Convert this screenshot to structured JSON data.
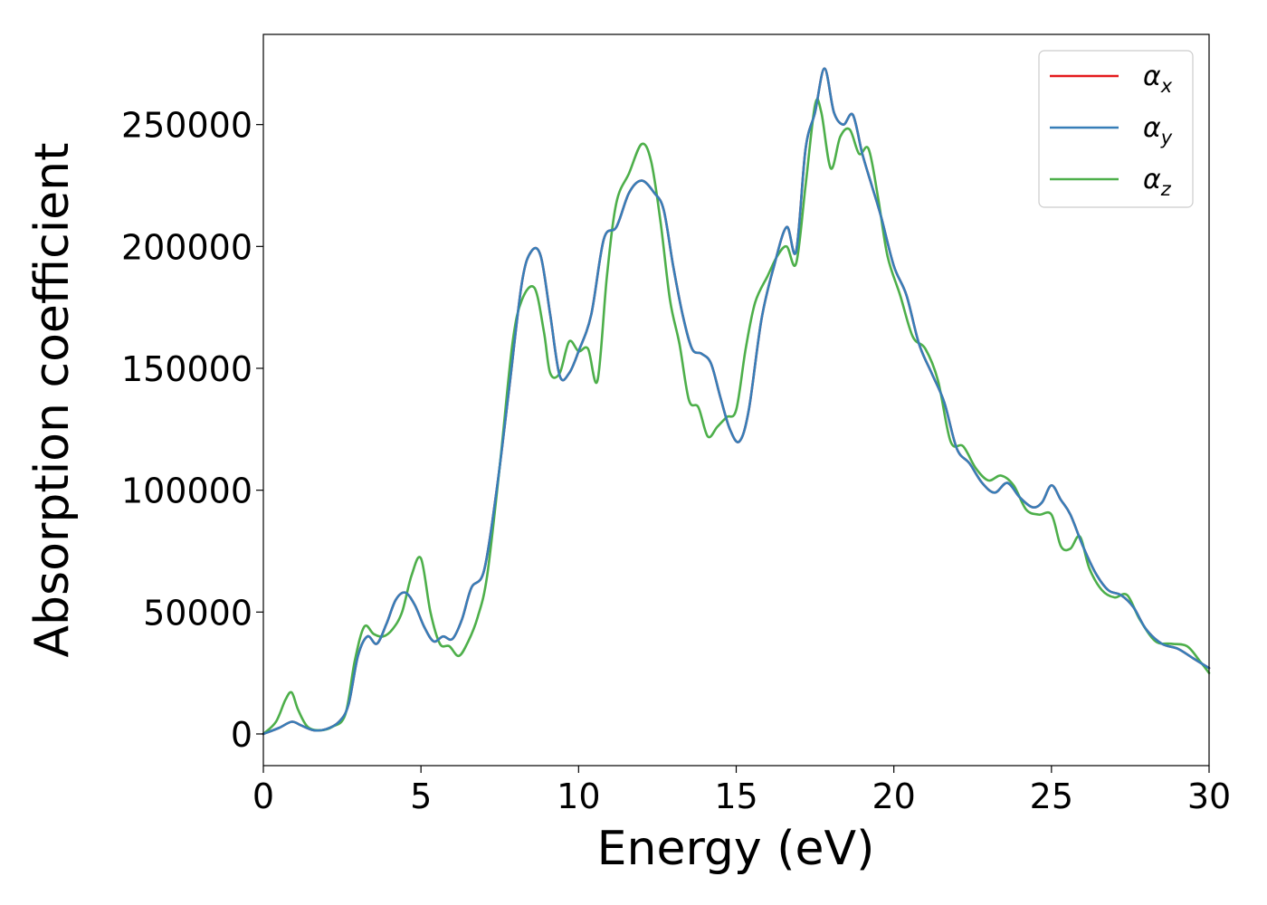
{
  "chart_data": {
    "type": "line",
    "title": "",
    "xlabel": "Energy (eV)",
    "ylabel": "Absorption coefficient",
    "xlim": [
      0,
      30
    ],
    "ylim": [
      -13000,
      287000
    ],
    "xticks": [
      0,
      5,
      10,
      15,
      20,
      25,
      30
    ],
    "yticks": [
      0,
      50000,
      100000,
      150000,
      200000,
      250000
    ],
    "grid": false,
    "legend_position": "top-right",
    "series": [
      {
        "name": "α",
        "subscript": "x",
        "color": "#e41a1c",
        "x": [
          0,
          0.5,
          0.9,
          1.2,
          1.6,
          2.0,
          2.4,
          2.7,
          3.0,
          3.3,
          3.6,
          3.9,
          4.2,
          4.5,
          4.8,
          5.1,
          5.4,
          5.7,
          6.0,
          6.3,
          6.6,
          7.0,
          7.4,
          7.8,
          8.2,
          8.5,
          8.8,
          9.1,
          9.4,
          9.7,
          10.0,
          10.4,
          10.8,
          11.2,
          11.6,
          12.0,
          12.4,
          12.7,
          13.0,
          13.3,
          13.6,
          13.9,
          14.2,
          14.5,
          14.8,
          15.1,
          15.4,
          15.8,
          16.2,
          16.6,
          16.9,
          17.2,
          17.5,
          17.8,
          18.1,
          18.4,
          18.7,
          19.0,
          19.3,
          19.6,
          20.0,
          20.4,
          20.8,
          21.2,
          21.6,
          22.0,
          22.4,
          22.8,
          23.2,
          23.6,
          24.0,
          24.4,
          24.7,
          25.0,
          25.3,
          25.6,
          26.0,
          26.4,
          26.8,
          27.2,
          27.6,
          28.0,
          28.5,
          29.0,
          29.5,
          30.0
        ],
        "values": [
          0,
          2500,
          5000,
          3500,
          1500,
          2000,
          5000,
          12000,
          32000,
          40000,
          37000,
          45000,
          55000,
          58000,
          53000,
          44000,
          38000,
          40000,
          39000,
          47000,
          60000,
          67000,
          100000,
          142000,
          185000,
          198000,
          196000,
          172000,
          147000,
          148000,
          157000,
          172000,
          203000,
          208000,
          222000,
          227000,
          222000,
          215000,
          192000,
          172000,
          158000,
          156000,
          152000,
          138000,
          125000,
          120000,
          133000,
          170000,
          192000,
          208000,
          198000,
          240000,
          255000,
          273000,
          255000,
          250000,
          254000,
          238000,
          225000,
          212000,
          192000,
          180000,
          160000,
          148000,
          136000,
          117000,
          111000,
          103000,
          99000,
          103000,
          97000,
          93000,
          95000,
          102000,
          96000,
          90000,
          77000,
          66000,
          59000,
          57000,
          52000,
          43000,
          37000,
          35000,
          31000,
          27000
        ]
      },
      {
        "name": "α",
        "subscript": "y",
        "color": "#377eb8",
        "x": [
          0,
          0.5,
          0.9,
          1.2,
          1.6,
          2.0,
          2.4,
          2.7,
          3.0,
          3.3,
          3.6,
          3.9,
          4.2,
          4.5,
          4.8,
          5.1,
          5.4,
          5.7,
          6.0,
          6.3,
          6.6,
          7.0,
          7.4,
          7.8,
          8.2,
          8.5,
          8.8,
          9.1,
          9.4,
          9.7,
          10.0,
          10.4,
          10.8,
          11.2,
          11.6,
          12.0,
          12.4,
          12.7,
          13.0,
          13.3,
          13.6,
          13.9,
          14.2,
          14.5,
          14.8,
          15.1,
          15.4,
          15.8,
          16.2,
          16.6,
          16.9,
          17.2,
          17.5,
          17.8,
          18.1,
          18.4,
          18.7,
          19.0,
          19.3,
          19.6,
          20.0,
          20.4,
          20.8,
          21.2,
          21.6,
          22.0,
          22.4,
          22.8,
          23.2,
          23.6,
          24.0,
          24.4,
          24.7,
          25.0,
          25.3,
          25.6,
          26.0,
          26.4,
          26.8,
          27.2,
          27.6,
          28.0,
          28.5,
          29.0,
          29.5,
          30.0
        ],
        "values": [
          0,
          2500,
          5000,
          3500,
          1500,
          2000,
          5000,
          12000,
          32000,
          40000,
          37000,
          45000,
          55000,
          58000,
          53000,
          44000,
          38000,
          40000,
          39000,
          47000,
          60000,
          67000,
          100000,
          142000,
          185000,
          198000,
          196000,
          172000,
          147000,
          148000,
          157000,
          172000,
          203000,
          208000,
          222000,
          227000,
          222000,
          215000,
          192000,
          172000,
          158000,
          156000,
          152000,
          138000,
          125000,
          120000,
          133000,
          170000,
          192000,
          208000,
          198000,
          240000,
          255000,
          273000,
          255000,
          250000,
          254000,
          238000,
          225000,
          212000,
          192000,
          180000,
          160000,
          148000,
          136000,
          117000,
          111000,
          103000,
          99000,
          103000,
          97000,
          93000,
          95000,
          102000,
          96000,
          90000,
          77000,
          66000,
          59000,
          57000,
          52000,
          43000,
          37000,
          35000,
          31000,
          27000
        ]
      },
      {
        "name": "α",
        "subscript": "z",
        "color": "#4daf4a",
        "x": [
          0,
          0.4,
          0.7,
          0.9,
          1.1,
          1.4,
          1.8,
          2.2,
          2.6,
          2.9,
          3.2,
          3.5,
          3.8,
          4.1,
          4.4,
          4.7,
          5.0,
          5.3,
          5.6,
          5.9,
          6.2,
          6.5,
          6.8,
          7.1,
          7.5,
          7.9,
          8.2,
          8.6,
          8.9,
          9.1,
          9.4,
          9.7,
          10.0,
          10.3,
          10.6,
          10.9,
          11.2,
          11.6,
          12.0,
          12.3,
          12.6,
          12.9,
          13.2,
          13.5,
          13.8,
          14.1,
          14.4,
          14.7,
          15.0,
          15.3,
          15.6,
          16.0,
          16.3,
          16.6,
          16.9,
          17.2,
          17.5,
          17.7,
          18.0,
          18.3,
          18.6,
          18.9,
          19.2,
          19.5,
          19.8,
          20.2,
          20.6,
          21.0,
          21.4,
          21.8,
          22.2,
          22.6,
          23.0,
          23.4,
          23.8,
          24.2,
          24.6,
          25.0,
          25.3,
          25.6,
          25.9,
          26.2,
          26.6,
          27.0,
          27.4,
          27.8,
          28.3,
          28.8,
          29.3,
          29.7,
          30.0
        ],
        "values": [
          0,
          5000,
          14000,
          17000,
          10000,
          3000,
          1500,
          3000,
          8000,
          30000,
          44000,
          41000,
          40000,
          43000,
          50000,
          65000,
          72000,
          50000,
          37000,
          36000,
          32000,
          38000,
          48000,
          65000,
          110000,
          160000,
          178000,
          183000,
          165000,
          148000,
          148000,
          161000,
          157000,
          158000,
          145000,
          188000,
          218000,
          230000,
          242000,
          235000,
          210000,
          178000,
          160000,
          137000,
          134000,
          122000,
          126000,
          130000,
          133000,
          158000,
          177000,
          188000,
          196000,
          200000,
          193000,
          225000,
          258000,
          255000,
          232000,
          245000,
          248000,
          238000,
          240000,
          220000,
          196000,
          180000,
          163000,
          158000,
          145000,
          120000,
          118000,
          109000,
          104000,
          106000,
          102000,
          92000,
          90000,
          90000,
          77000,
          76000,
          81000,
          68000,
          59000,
          56000,
          57000,
          47000,
          38000,
          37000,
          36000,
          30000,
          25000
        ]
      }
    ]
  }
}
